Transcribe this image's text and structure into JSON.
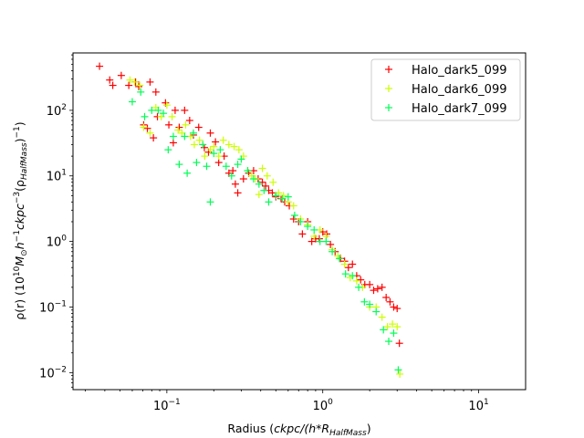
{
  "chart_data": {
    "type": "scatter",
    "marker": "+",
    "xscale": "log",
    "yscale": "log",
    "xlim": [
      0.025,
      20
    ],
    "ylim": [
      0.0055,
      750
    ],
    "grid": false,
    "legend_position": "top-right",
    "xlabel": {
      "prefix": "Radius (",
      "main": "ckpc/(h*R",
      "sub": "HalfMass",
      "suffix": ")"
    },
    "ylabel": {
      "prefix": "ρ(r) (10",
      "sup1": "10",
      "mid1": "M",
      "sub1": "⊙",
      "mid2": "h",
      "sup2": "−1",
      "mid3": "ckpc",
      "sup3": "−3",
      "mid4": "(ρ",
      "sub4": "HalfMass",
      "mid5": ")",
      "sup5": "−1",
      "suffix": ")"
    },
    "x_ticks": [
      {
        "value": 0.1,
        "mantissa": "10",
        "exp": "−1"
      },
      {
        "value": 1,
        "mantissa": "10",
        "exp": "0"
      },
      {
        "value": 10,
        "mantissa": "10",
        "exp": "1"
      }
    ],
    "y_ticks": [
      {
        "value": 0.01,
        "mantissa": "10",
        "exp": "−2"
      },
      {
        "value": 0.1,
        "mantissa": "10",
        "exp": "−1"
      },
      {
        "value": 1,
        "mantissa": "10",
        "exp": "0"
      },
      {
        "value": 10,
        "mantissa": "10",
        "exp": "1"
      },
      {
        "value": 100,
        "mantissa": "10",
        "exp": "2"
      }
    ],
    "series": [
      {
        "name": "Halo_dark5_099",
        "color": "#ff0000",
        "points": [
          [
            0.037,
            470
          ],
          [
            0.043,
            290
          ],
          [
            0.045,
            240
          ],
          [
            0.051,
            340
          ],
          [
            0.057,
            240
          ],
          [
            0.063,
            270
          ],
          [
            0.066,
            230
          ],
          [
            0.071,
            60
          ],
          [
            0.075,
            53
          ],
          [
            0.078,
            270
          ],
          [
            0.082,
            38
          ],
          [
            0.085,
            190
          ],
          [
            0.087,
            80
          ],
          [
            0.098,
            130
          ],
          [
            0.103,
            60
          ],
          [
            0.11,
            32
          ],
          [
            0.113,
            100
          ],
          [
            0.12,
            55
          ],
          [
            0.13,
            100
          ],
          [
            0.14,
            70
          ],
          [
            0.148,
            42
          ],
          [
            0.16,
            55
          ],
          [
            0.174,
            27
          ],
          [
            0.185,
            23
          ],
          [
            0.19,
            45
          ],
          [
            0.205,
            33
          ],
          [
            0.215,
            16
          ],
          [
            0.233,
            20
          ],
          [
            0.25,
            11
          ],
          [
            0.265,
            12
          ],
          [
            0.275,
            7.5
          ],
          [
            0.285,
            5.5
          ],
          [
            0.31,
            9
          ],
          [
            0.335,
            11
          ],
          [
            0.36,
            12
          ],
          [
            0.385,
            9
          ],
          [
            0.41,
            8
          ],
          [
            0.43,
            7
          ],
          [
            0.45,
            6
          ],
          [
            0.475,
            5.5
          ],
          [
            0.5,
            4.8
          ],
          [
            0.54,
            4.5
          ],
          [
            0.57,
            4
          ],
          [
            0.61,
            3.5
          ],
          [
            0.65,
            2.2
          ],
          [
            0.7,
            2
          ],
          [
            0.74,
            1.3
          ],
          [
            0.8,
            2
          ],
          [
            0.85,
            1
          ],
          [
            0.9,
            1.1
          ],
          [
            0.95,
            1.1
          ],
          [
            1.0,
            1.4
          ],
          [
            1.06,
            1.3
          ],
          [
            1.12,
            0.9
          ],
          [
            1.2,
            0.7
          ],
          [
            1.3,
            0.55
          ],
          [
            1.38,
            0.5
          ],
          [
            1.46,
            0.4
          ],
          [
            1.55,
            0.45
          ],
          [
            1.65,
            0.3
          ],
          [
            1.75,
            0.26
          ],
          [
            1.86,
            0.22
          ],
          [
            2.0,
            0.22
          ],
          [
            2.12,
            0.18
          ],
          [
            2.25,
            0.19
          ],
          [
            2.4,
            0.2
          ],
          [
            2.55,
            0.14
          ],
          [
            2.7,
            0.12
          ],
          [
            2.85,
            0.1
          ],
          [
            3.0,
            0.095
          ],
          [
            3.1,
            0.028
          ]
        ]
      },
      {
        "name": "Halo_dark6_099",
        "color": "#ccff00",
        "points": [
          [
            0.058,
            290
          ],
          [
            0.062,
            270
          ],
          [
            0.067,
            240
          ],
          [
            0.071,
            55
          ],
          [
            0.078,
            45
          ],
          [
            0.085,
            110
          ],
          [
            0.092,
            80
          ],
          [
            0.1,
            120
          ],
          [
            0.108,
            80
          ],
          [
            0.118,
            50
          ],
          [
            0.125,
            45
          ],
          [
            0.132,
            60
          ],
          [
            0.142,
            40
          ],
          [
            0.15,
            30
          ],
          [
            0.162,
            35
          ],
          [
            0.175,
            20
          ],
          [
            0.19,
            25
          ],
          [
            0.2,
            28
          ],
          [
            0.215,
            20
          ],
          [
            0.23,
            35
          ],
          [
            0.25,
            30
          ],
          [
            0.27,
            28
          ],
          [
            0.29,
            25
          ],
          [
            0.31,
            20
          ],
          [
            0.33,
            12
          ],
          [
            0.35,
            10
          ],
          [
            0.37,
            9
          ],
          [
            0.39,
            5.2
          ],
          [
            0.41,
            13
          ],
          [
            0.44,
            10
          ],
          [
            0.48,
            8
          ],
          [
            0.52,
            5.5
          ],
          [
            0.56,
            5
          ],
          [
            0.6,
            4
          ],
          [
            0.65,
            3.5
          ],
          [
            0.72,
            2.2
          ],
          [
            0.8,
            1.8
          ],
          [
            0.88,
            1.2
          ],
          [
            0.96,
            1.5
          ],
          [
            1.05,
            1.2
          ],
          [
            1.15,
            0.75
          ],
          [
            1.25,
            0.6
          ],
          [
            1.38,
            0.45
          ],
          [
            1.5,
            0.28
          ],
          [
            1.65,
            0.25
          ],
          [
            1.8,
            0.2
          ],
          [
            2.0,
            0.1
          ],
          [
            2.2,
            0.1
          ],
          [
            2.4,
            0.07
          ],
          [
            2.6,
            0.05
          ],
          [
            2.8,
            0.055
          ],
          [
            3.0,
            0.05
          ],
          [
            3.12,
            0.0095
          ]
        ]
      },
      {
        "name": "Halo_dark7_099",
        "color": "#00ff55",
        "points": [
          [
            0.06,
            135
          ],
          [
            0.068,
            190
          ],
          [
            0.072,
            80
          ],
          [
            0.08,
            100
          ],
          [
            0.088,
            100
          ],
          [
            0.095,
            90
          ],
          [
            0.102,
            25
          ],
          [
            0.11,
            40
          ],
          [
            0.12,
            15
          ],
          [
            0.13,
            40
          ],
          [
            0.135,
            11
          ],
          [
            0.148,
            45
          ],
          [
            0.155,
            16
          ],
          [
            0.17,
            30
          ],
          [
            0.18,
            14
          ],
          [
            0.19,
            4
          ],
          [
            0.2,
            22
          ],
          [
            0.22,
            25
          ],
          [
            0.24,
            14
          ],
          [
            0.26,
            10
          ],
          [
            0.285,
            15
          ],
          [
            0.3,
            18
          ],
          [
            0.33,
            12
          ],
          [
            0.36,
            9
          ],
          [
            0.39,
            7.5
          ],
          [
            0.42,
            6
          ],
          [
            0.45,
            4
          ],
          [
            0.5,
            5
          ],
          [
            0.55,
            4.5
          ],
          [
            0.6,
            4.8
          ],
          [
            0.66,
            2.5
          ],
          [
            0.72,
            2
          ],
          [
            0.8,
            1.7
          ],
          [
            0.88,
            1.5
          ],
          [
            0.96,
            1
          ],
          [
            1.05,
            1
          ],
          [
            1.15,
            0.7
          ],
          [
            1.28,
            0.55
          ],
          [
            1.4,
            0.32
          ],
          [
            1.55,
            0.3
          ],
          [
            1.7,
            0.2
          ],
          [
            1.85,
            0.12
          ],
          [
            2.0,
            0.11
          ],
          [
            2.2,
            0.085
          ],
          [
            2.45,
            0.045
          ],
          [
            2.65,
            0.03
          ],
          [
            2.85,
            0.04
          ],
          [
            3.05,
            0.011
          ]
        ]
      }
    ]
  }
}
